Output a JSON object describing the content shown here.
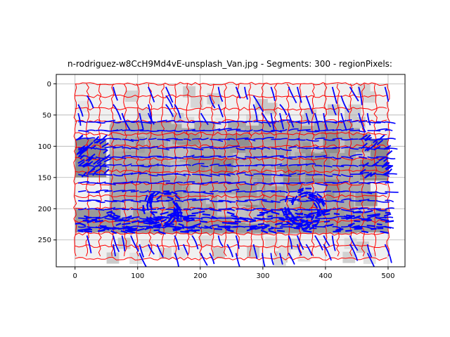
{
  "chart_data": {
    "type": "image-segmentation-overlay",
    "title": "n-rodriguez-w8CcH9Md4vE-unsplash_Van.jpg - Segments: 300 - regionPixels:",
    "xlabel": "",
    "ylabel": "",
    "xlim": [
      -30,
      527
    ],
    "ylim": [
      293,
      -15
    ],
    "y_inverted": true,
    "grid": true,
    "image_extent": [
      0,
      500,
      0,
      280
    ],
    "x_ticks": [
      0,
      100,
      200,
      300,
      400,
      500
    ],
    "y_ticks": [
      0,
      50,
      100,
      150,
      200,
      250
    ],
    "colors": {
      "boundary": "#ff0000",
      "flow": "#0000ff",
      "background_light": "#f0f0f0",
      "van_body": "#a8a8a8",
      "grid": "#b0b0b0"
    },
    "van_region": {
      "body": {
        "x0": 0,
        "x1": 500,
        "y0": 60,
        "y1": 240
      },
      "cab_front": {
        "x0": 0,
        "x1": 50,
        "y0": 88,
        "y1": 150
      },
      "rear_window": {
        "x0": 455,
        "x1": 500,
        "y0": 88,
        "y1": 155
      },
      "wheels": [
        {
          "cx": 140,
          "cy": 200,
          "r": 28
        },
        {
          "cx": 365,
          "cy": 200,
          "r": 30
        }
      ],
      "bottom_band": {
        "x0": 0,
        "x1": 500,
        "y0": 200,
        "y1": 238
      }
    }
  }
}
